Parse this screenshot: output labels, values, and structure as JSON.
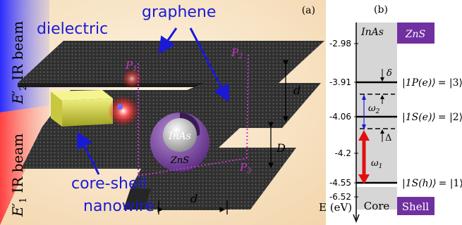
{
  "panel_a": {
    "label": "(a)",
    "dielectric": "dielectric",
    "graphene": "graphene",
    "core_shell_line1": "core-shell",
    "core_shell_line2": "nanowire",
    "beam_top_field": "E′",
    "beam_top_sub": "2",
    "beam_top_text": "IR beam",
    "beam_bottom_field": "E′",
    "beam_bottom_sub": "1",
    "beam_bottom_text": "IR beam",
    "p1": "P",
    "p1_sub": "1",
    "p2": "P",
    "p2_sub": "2",
    "p3": "P",
    "p3_sub": "3",
    "d_top": "d",
    "D_mid": "D",
    "d_bottom": "d",
    "core_label": "InAs",
    "shell_label": "ZnS"
  },
  "panel_b": {
    "label": "(b)",
    "inas": "InAs",
    "zns": "ZnS",
    "energies": [
      "-2.98",
      "-3.91",
      "-4.06",
      "-4.2",
      "-4.55",
      "-6.52"
    ],
    "states": [
      {
        "ket": "|1P(e)⟩",
        "eq": "= |3⟩"
      },
      {
        "ket": "|1S(e)⟩",
        "eq": "= |2⟩"
      },
      {
        "ket": "|1S(h)⟩",
        "eq": "= |1⟩"
      }
    ],
    "delta": "δ",
    "Delta": "Δ",
    "omega2": "ω",
    "omega2_sub": "2",
    "omega1": "ω",
    "omega1_sub": "1",
    "axis_label": "E (eV)",
    "core": "Core",
    "shell": "Shell"
  },
  "colors": {
    "background_a": "#f8e4c4",
    "graphene_dark": "#3a3a3a",
    "blue_arrow": "#1a1ad6",
    "magenta_dots": "#cc33cc",
    "red_beam": "#ff5a5a",
    "blue_beam": "#3b3bff",
    "shell_purple": "#7030a0",
    "core_gray": "#d6d6d6",
    "red_arrow": "#e01010"
  }
}
